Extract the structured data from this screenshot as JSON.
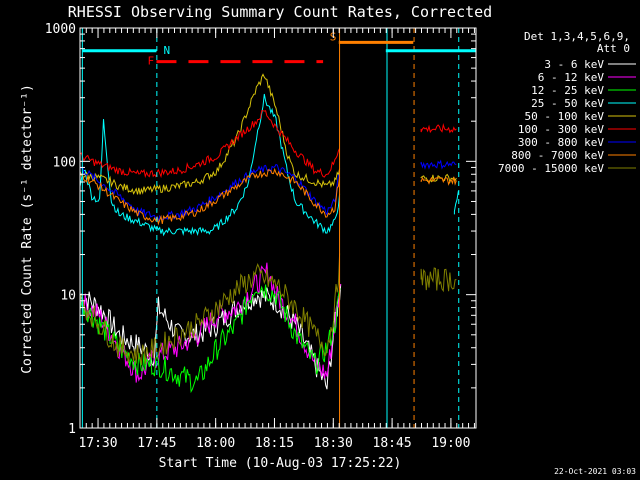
{
  "chart_data": {
    "type": "line",
    "title": "RHESSI Observing Summary Count Rates, Corrected",
    "xlabel": "Start Time (10-Aug-03 17:25:22)",
    "ylabel": "Corrected Count Rate (s⁻¹ detector⁻¹)",
    "yscale": "log",
    "ylim": [
      1,
      1000
    ],
    "xlim_minutes": [
      0,
      101
    ],
    "y_ticks": [
      {
        "v": 1,
        "label": "1"
      },
      {
        "v": 10,
        "label": "10"
      },
      {
        "v": 100,
        "label": "100"
      },
      {
        "v": 1000,
        "label": "1000"
      }
    ],
    "x_ticks": [
      {
        "t": 4.6,
        "label": "17:30"
      },
      {
        "t": 19.6,
        "label": "17:45"
      },
      {
        "t": 34.6,
        "label": "18:00"
      },
      {
        "t": 49.6,
        "label": "18:15"
      },
      {
        "t": 64.6,
        "label": "18:30"
      },
      {
        "t": 79.6,
        "label": "18:45"
      },
      {
        "t": 94.6,
        "label": "19:00"
      }
    ],
    "legend_header": [
      "Det 1,3,4,5,6,9,",
      "Att 0"
    ],
    "legend_position": "right",
    "flags": [
      {
        "label": "N",
        "color": "#00ffff",
        "t0": 0.5,
        "t1": 19.5,
        "y": 675
      },
      {
        "label": "F",
        "color": "#ff0000",
        "t0": 19.5,
        "t1": 62,
        "y": 560,
        "dashed": true
      },
      {
        "label": "S",
        "color": "#ff8000",
        "t0": 66,
        "t1": 85,
        "y": 780
      },
      {
        "label": "",
        "color": "#00ffff",
        "t0": 78,
        "t1": 101,
        "y": 675
      }
    ],
    "vlines": [
      {
        "t": 0.6,
        "color": "#00ffff",
        "dashed": false
      },
      {
        "t": 19.6,
        "color": "#00ffff",
        "dashed": true
      },
      {
        "t": 66.2,
        "color": "#ff8000",
        "dashed": false
      },
      {
        "t": 78.3,
        "color": "#00ffff",
        "dashed": false
      },
      {
        "t": 85.2,
        "color": "#ff8000",
        "dashed": true
      },
      {
        "t": 96.6,
        "color": "#00ffff",
        "dashed": true
      }
    ],
    "series": [
      {
        "name": "3 - 6 keV",
        "color": "#ffffff",
        "x": [
          0,
          5,
          10,
          19,
          20,
          25,
          30,
          35,
          40,
          45,
          50,
          55,
          60,
          63,
          65,
          66.5
        ],
        "values": [
          10,
          8,
          5,
          3.5,
          8,
          5,
          5,
          6,
          8,
          10,
          9,
          6,
          3,
          2,
          6,
          12
        ]
      },
      {
        "name": "6 - 12 keV",
        "color": "#ff00ff",
        "x": [
          0,
          5,
          10,
          15,
          20,
          25,
          30,
          35,
          40,
          45,
          48,
          50,
          55,
          60,
          63,
          65,
          66.5
        ],
        "values": [
          9,
          7,
          4,
          2.5,
          3.5,
          4,
          5,
          7,
          8,
          12,
          15,
          10,
          6,
          3,
          2.5,
          6,
          12
        ]
      },
      {
        "name": "12 - 25 keV",
        "color": "#00ff00",
        "x": [
          0,
          5,
          10,
          15,
          20,
          25,
          30,
          35,
          40,
          45,
          50,
          55,
          60,
          63,
          65,
          66.5
        ],
        "values": [
          9,
          6,
          4,
          3,
          3,
          2.5,
          2.2,
          4,
          6,
          12,
          10,
          5,
          3,
          4,
          6,
          11
        ]
      },
      {
        "name": "25 - 50 keV",
        "color": "#00ffff",
        "x": [
          0,
          1,
          3,
          5,
          6,
          8,
          10,
          15,
          20,
          25,
          30,
          33,
          35,
          40,
          43,
          45,
          47,
          50,
          53,
          55,
          60,
          63,
          65,
          66.5,
          95.5,
          96.5
        ],
        "values": [
          65,
          90,
          55,
          50,
          200,
          50,
          40,
          35,
          30,
          30,
          30,
          30,
          32,
          45,
          70,
          150,
          300,
          200,
          80,
          50,
          35,
          30,
          35,
          60,
          40,
          60
        ]
      },
      {
        "name": "50 - 100 keV",
        "color": "#d6c20c",
        "x": [
          0,
          5,
          8,
          10,
          15,
          20,
          25,
          30,
          35,
          40,
          43,
          45,
          47,
          50,
          53,
          55,
          60,
          63,
          65,
          66.5,
          87,
          96
        ],
        "values": [
          80,
          75,
          70,
          65,
          60,
          62,
          65,
          70,
          85,
          150,
          250,
          350,
          450,
          250,
          110,
          80,
          70,
          65,
          70,
          90,
          75,
          75
        ]
      },
      {
        "name": "100 - 300 keV",
        "color": "#ff0000",
        "x": [
          0,
          5,
          10,
          15,
          20,
          25,
          30,
          35,
          40,
          45,
          47,
          50,
          55,
          60,
          63,
          65,
          66.5,
          87,
          96
        ],
        "values": [
          110,
          95,
          85,
          80,
          82,
          85,
          95,
          110,
          150,
          200,
          240,
          180,
          120,
          85,
          80,
          100,
          140,
          175,
          175
        ]
      },
      {
        "name": "300 - 800 keV",
        "color": "#0000ff",
        "x": [
          0,
          5,
          10,
          15,
          20,
          25,
          30,
          35,
          40,
          45,
          50,
          55,
          60,
          63,
          65,
          66.5,
          87,
          96
        ],
        "values": [
          90,
          70,
          55,
          42,
          38,
          40,
          45,
          55,
          70,
          85,
          90,
          75,
          50,
          42,
          50,
          95,
          95,
          95
        ]
      },
      {
        "name": "800 - 7000 keV",
        "color": "#ff8000",
        "x": [
          0,
          5,
          10,
          15,
          20,
          25,
          30,
          35,
          40,
          45,
          50,
          55,
          60,
          63,
          65,
          66.5,
          87,
          96
        ],
        "values": [
          80,
          65,
          50,
          40,
          36,
          38,
          42,
          52,
          65,
          80,
          85,
          70,
          48,
          40,
          45,
          90,
          72,
          72
        ]
      },
      {
        "name": "7000 - 15000 keV",
        "color": "#808000",
        "x": [
          0,
          5,
          10,
          15,
          20,
          25,
          30,
          35,
          40,
          45,
          50,
          55,
          60,
          63,
          65,
          66.5,
          87,
          96
        ],
        "values": [
          9,
          6,
          4,
          3.5,
          4,
          5,
          6,
          8,
          11,
          14,
          12,
          8,
          5,
          4,
          8,
          22,
          13,
          13
        ]
      }
    ],
    "grid": false,
    "footer_date": "22-Oct-2021 03:03"
  },
  "colors": {
    "background": "#000000",
    "axes": "#ffffff"
  }
}
